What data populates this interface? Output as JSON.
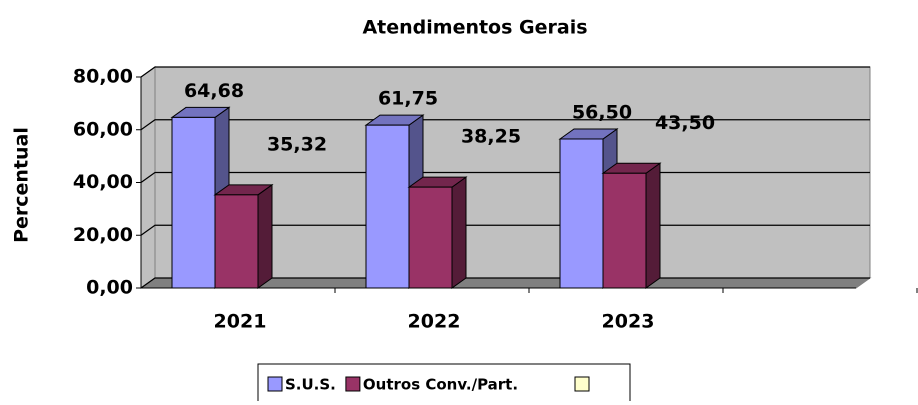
{
  "chart_data": {
    "type": "bar3d",
    "title": "Atendimentos Gerais",
    "y_label": "Percentual",
    "categories": [
      "2021",
      "2022",
      "2023",
      null
    ],
    "series": [
      {
        "name": "S.U.S.",
        "color": "#9999ff",
        "values": [
          64.68,
          61.75,
          56.5,
          null
        ],
        "value_labels": [
          "64,68",
          "61,75",
          "56,50",
          null
        ]
      },
      {
        "name": "Outros Conv./Part.",
        "color": "#993366",
        "values": [
          35.32,
          38.25,
          43.5,
          null
        ],
        "value_labels": [
          "35,32",
          "38,25",
          "43,50",
          null
        ]
      }
    ],
    "ylim": [
      0,
      80
    ],
    "yticks": [
      {
        "value": 0,
        "label": "0,00"
      },
      {
        "value": 20,
        "label": "20,00"
      },
      {
        "value": 40,
        "label": "40,00"
      },
      {
        "value": 60,
        "label": "60,00"
      },
      {
        "value": 80,
        "label": "80,00"
      }
    ],
    "grid": true
  }
}
